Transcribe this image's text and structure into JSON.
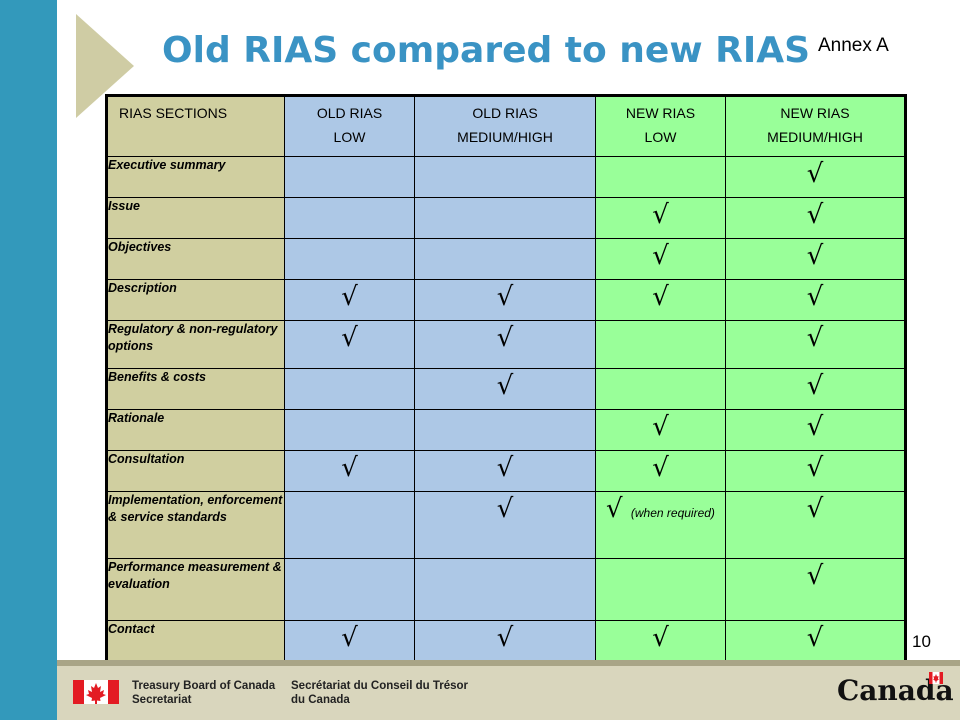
{
  "title": "Old RIAS compared to new RIAS",
  "annex": "Annex A",
  "page_number": "10",
  "table": {
    "headers": [
      {
        "l1": "RIAS SECTIONS",
        "l2": ""
      },
      {
        "l1": "OLD RIAS",
        "l2": "LOW"
      },
      {
        "l1": "OLD RIAS",
        "l2": "MEDIUM/HIGH"
      },
      {
        "l1": "NEW RIAS",
        "l2": "LOW"
      },
      {
        "l1": "NEW RIAS",
        "l2": "MEDIUM/HIGH"
      }
    ],
    "check": "√",
    "rows": [
      {
        "label": "Executive summary",
        "cells": [
          "",
          "",
          "",
          "√"
        ]
      },
      {
        "label": "Issue",
        "cells": [
          "",
          "",
          "√",
          "√"
        ]
      },
      {
        "label": "Objectives",
        "cells": [
          "",
          "",
          "√",
          "√"
        ]
      },
      {
        "label": "Description",
        "cells": [
          "√",
          "√",
          "√",
          "√"
        ]
      },
      {
        "label": "Regulatory & non-regulatory options",
        "cells": [
          "√",
          "√",
          "",
          "√"
        ]
      },
      {
        "label": "Benefits & costs",
        "cells": [
          "",
          "√",
          "",
          "√"
        ]
      },
      {
        "label": "Rationale",
        "cells": [
          "",
          "",
          "√",
          "√"
        ]
      },
      {
        "label": "Consultation",
        "cells": [
          "√",
          "√",
          "√",
          "√"
        ]
      },
      {
        "label": "Implementation, enforcement & service standards",
        "cells": [
          "",
          "√",
          "√",
          "√"
        ],
        "note": "(when required)"
      },
      {
        "label": "Performance measurement & evaluation",
        "cells": [
          "",
          "",
          "",
          "√"
        ]
      },
      {
        "label": "Contact",
        "cells": [
          "√",
          "√",
          "√",
          "√"
        ]
      }
    ]
  },
  "footer": {
    "en_line1": "Treasury Board of Canada",
    "en_line2": "Secretariat",
    "fr_line1": "Secrétariat du Conseil du Trésor",
    "fr_line2": "du Canada",
    "wordmark": "Canada",
    "colors": {
      "flag_red": "#e31b23",
      "footer_bg": "#d9d6bd",
      "title_blue": "#3a93c4"
    }
  }
}
